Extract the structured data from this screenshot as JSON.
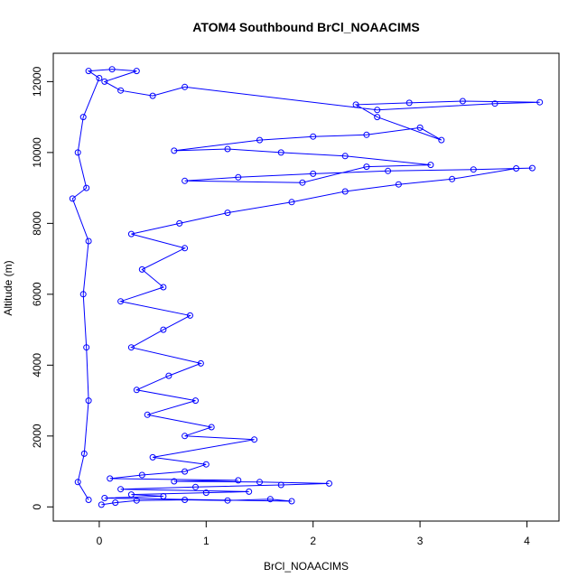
{
  "chart_data": {
    "type": "scatter",
    "title": "ATOM4 Southbound BrCl_NOAACIMS",
    "xlabel": "BrCl_NOAACIMS",
    "ylabel": "Altitude (m)",
    "xlim": [
      -0.43,
      4.3
    ],
    "ylim": [
      -400,
      12800
    ],
    "x_ticks": [
      0,
      1,
      2,
      3,
      4
    ],
    "y_ticks": [
      0,
      2000,
      4000,
      6000,
      8000,
      10000,
      12000
    ],
    "grid": false,
    "legend": "none",
    "series_style": "points-connected-by-lines",
    "colors": {
      "series": "#0000ff",
      "axes": "#000000",
      "background": "#ffffff"
    },
    "series": [
      {
        "points": [
          [
            0.02,
            60
          ],
          [
            0.15,
            120
          ],
          [
            0.35,
            180
          ],
          [
            0.8,
            200
          ],
          [
            1.2,
            180
          ],
          [
            1.6,
            220
          ],
          [
            1.8,
            160
          ],
          [
            0.05,
            250
          ],
          [
            0.6,
            300
          ],
          [
            0.3,
            350
          ],
          [
            1.0,
            400
          ],
          [
            1.4,
            430
          ],
          [
            0.2,
            500
          ],
          [
            0.9,
            560
          ],
          [
            1.7,
            620
          ],
          [
            2.15,
            660
          ],
          [
            1.5,
            700
          ],
          [
            0.7,
            720
          ],
          [
            1.3,
            750
          ],
          [
            0.1,
            800
          ],
          [
            0.4,
            900
          ],
          [
            0.8,
            1000
          ],
          [
            1.0,
            1200
          ],
          [
            0.5,
            1400
          ],
          [
            1.45,
            1900
          ],
          [
            0.8,
            2000
          ],
          [
            1.05,
            2250
          ],
          [
            0.45,
            2600
          ],
          [
            0.9,
            3000
          ],
          [
            0.35,
            3300
          ],
          [
            0.65,
            3700
          ],
          [
            0.95,
            4050
          ],
          [
            0.3,
            4500
          ],
          [
            0.6,
            5000
          ],
          [
            0.85,
            5400
          ],
          [
            0.2,
            5800
          ],
          [
            0.6,
            6200
          ],
          [
            0.4,
            6700
          ],
          [
            0.8,
            7300
          ],
          [
            0.3,
            7700
          ],
          [
            0.75,
            8000
          ],
          [
            1.2,
            8300
          ],
          [
            1.8,
            8600
          ],
          [
            2.3,
            8900
          ],
          [
            2.8,
            9100
          ],
          [
            3.3,
            9250
          ],
          [
            3.9,
            9550
          ],
          [
            4.05,
            9560
          ],
          [
            3.5,
            9520
          ],
          [
            2.7,
            9480
          ],
          [
            2.0,
            9400
          ],
          [
            1.3,
            9300
          ],
          [
            0.8,
            9200
          ],
          [
            1.9,
            9150
          ],
          [
            2.5,
            9600
          ],
          [
            3.1,
            9650
          ],
          [
            2.3,
            9900
          ],
          [
            1.7,
            10000
          ],
          [
            1.2,
            10100
          ],
          [
            0.7,
            10050
          ],
          [
            1.5,
            10350
          ],
          [
            2.0,
            10450
          ],
          [
            2.5,
            10500
          ],
          [
            3.0,
            10700
          ],
          [
            3.2,
            10350
          ],
          [
            2.6,
            11000
          ],
          [
            2.4,
            11350
          ],
          [
            2.9,
            11400
          ],
          [
            3.4,
            11450
          ],
          [
            4.12,
            11420
          ],
          [
            3.7,
            11380
          ],
          [
            2.6,
            11200
          ],
          [
            0.8,
            11850
          ],
          [
            0.5,
            11600
          ],
          [
            0.2,
            11750
          ],
          [
            0.05,
            12000
          ],
          [
            0.35,
            12300
          ],
          [
            0.12,
            12350
          ],
          [
            -0.1,
            12300
          ],
          [
            0.0,
            12100
          ],
          [
            -0.15,
            11000
          ],
          [
            -0.2,
            10000
          ],
          [
            -0.12,
            9000
          ],
          [
            -0.25,
            8700
          ],
          [
            -0.1,
            7500
          ],
          [
            -0.15,
            6000
          ],
          [
            -0.12,
            4500
          ],
          [
            -0.1,
            3000
          ],
          [
            -0.14,
            1500
          ],
          [
            -0.2,
            700
          ],
          [
            -0.1,
            200
          ]
        ]
      }
    ]
  }
}
